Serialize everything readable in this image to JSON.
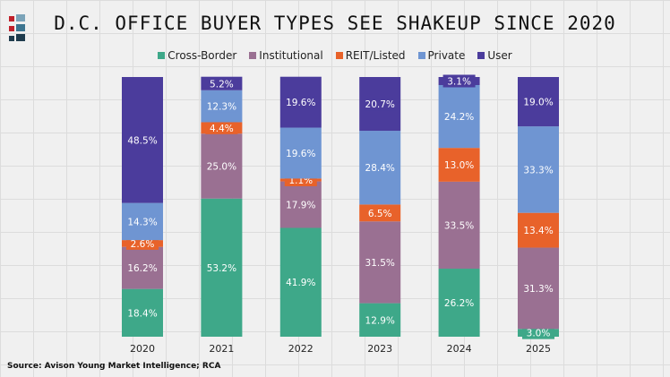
{
  "chart_data": {
    "type": "bar",
    "stacked": true,
    "title": "D.C. OFFICE BUYER TYPES SEE SHAKEUP SINCE 2020",
    "categories": [
      "2020",
      "2021",
      "2022",
      "2023",
      "2024",
      "2025"
    ],
    "series": [
      {
        "name": "Cross-Border",
        "color": "#3ea889",
        "values": [
          18.4,
          53.2,
          41.9,
          12.9,
          26.2,
          3.0
        ]
      },
      {
        "name": "Institutional",
        "color": "#9a7092",
        "values": [
          16.2,
          25.0,
          17.9,
          31.5,
          33.5,
          31.3
        ]
      },
      {
        "name": "REIT/Listed",
        "color": "#e8622a",
        "values": [
          2.6,
          4.4,
          1.1,
          6.5,
          13.0,
          13.4
        ]
      },
      {
        "name": "Private",
        "color": "#6f95d2",
        "values": [
          14.3,
          12.3,
          19.6,
          28.4,
          24.2,
          33.3
        ]
      },
      {
        "name": "User",
        "color": "#4b3c9c",
        "values": [
          48.5,
          5.2,
          19.6,
          20.7,
          3.1,
          19.0
        ]
      }
    ],
    "ylim": [
      0,
      100
    ],
    "value_format": "percent",
    "legend": "top",
    "grid": false
  },
  "source": "Source: Avison Young Market Intelligence; RCA"
}
